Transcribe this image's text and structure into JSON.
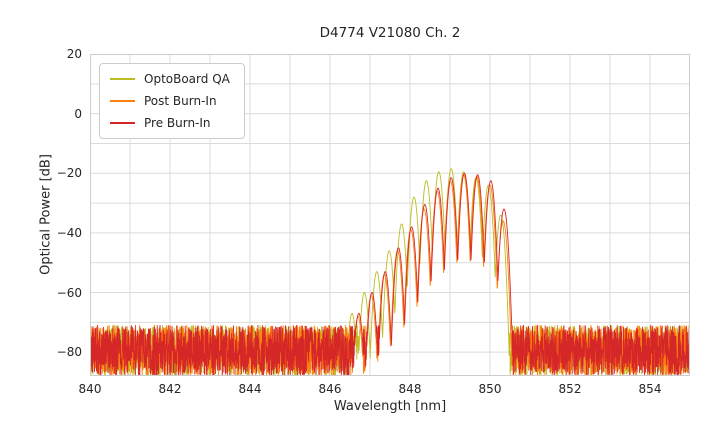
{
  "chart_data": {
    "type": "line",
    "title": "D4774 V21080 Ch. 2",
    "xlabel": "Wavelength [nm]",
    "ylabel": "Optical Power [dB]",
    "xlim": [
      840,
      855
    ],
    "ylim": [
      -88,
      20
    ],
    "x_ticks": [
      840,
      842,
      844,
      846,
      848,
      850,
      852,
      854
    ],
    "y_ticks": [
      20,
      0,
      -20,
      -40,
      -60,
      -80
    ],
    "grid": {
      "x_step": 1,
      "y_step": 10,
      "color": "#dcdcdc",
      "border_color": "#cccccc"
    },
    "legend_position": "upper left",
    "noise_floor": {
      "min": -88,
      "max": -71
    },
    "mode_shape": {
      "width": 0.15,
      "valley_depth": 24
    },
    "series": [
      {
        "name": "OptoBoard QA",
        "color": "#bcbd22",
        "modes": [
          [
            846.55,
            -67
          ],
          [
            846.86,
            -60
          ],
          [
            847.17,
            -53
          ],
          [
            847.48,
            -46
          ],
          [
            847.79,
            -37
          ],
          [
            848.1,
            -28
          ],
          [
            848.41,
            -22.5
          ],
          [
            848.72,
            -19.5
          ],
          [
            849.03,
            -18.5
          ],
          [
            849.34,
            -19.5
          ],
          [
            849.65,
            -21.5
          ],
          [
            849.96,
            -24
          ],
          [
            850.27,
            -34
          ]
        ]
      },
      {
        "name": "Post Burn-In",
        "color": "#ff7f0e",
        "modes": [
          [
            846.7,
            -68
          ],
          [
            847.03,
            -61
          ],
          [
            847.36,
            -54
          ],
          [
            847.69,
            -46
          ],
          [
            848.02,
            -39
          ],
          [
            848.35,
            -32
          ],
          [
            848.68,
            -26
          ],
          [
            849.01,
            -22.5
          ],
          [
            849.34,
            -20.5
          ],
          [
            849.67,
            -21
          ],
          [
            850.0,
            -24
          ],
          [
            850.33,
            -36
          ]
        ]
      },
      {
        "name": "Pre Burn-In",
        "color": "#d62728",
        "modes": [
          [
            846.72,
            -67
          ],
          [
            847.05,
            -60
          ],
          [
            847.38,
            -53
          ],
          [
            847.71,
            -45
          ],
          [
            848.04,
            -38
          ],
          [
            848.37,
            -30.5
          ],
          [
            848.7,
            -25
          ],
          [
            849.03,
            -21.5
          ],
          [
            849.36,
            -20
          ],
          [
            849.69,
            -20.5
          ],
          [
            850.02,
            -22.5
          ],
          [
            850.35,
            -32
          ]
        ]
      }
    ]
  }
}
